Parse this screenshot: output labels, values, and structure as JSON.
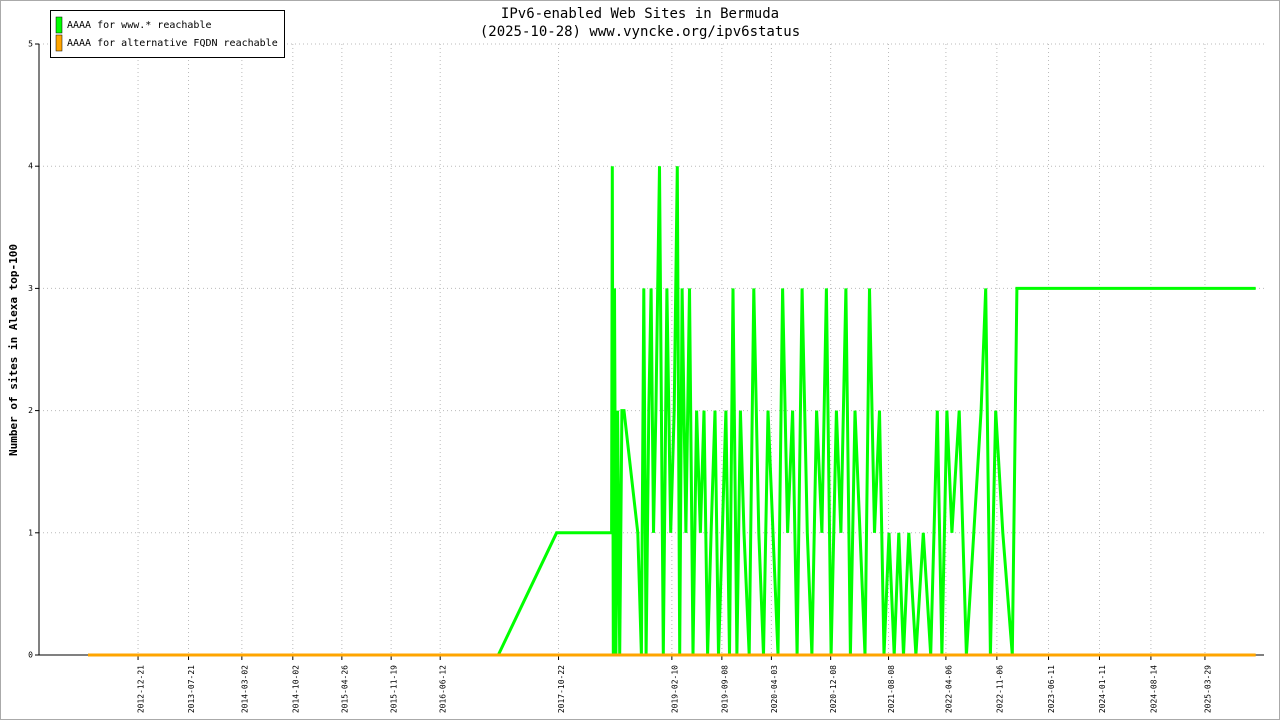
{
  "chart_data": {
    "type": "line",
    "title": "IPv6-enabled Web Sites in Bermuda",
    "subtitle": "(2025-10-28) www.vyncke.org/ipv6status",
    "y_label": "Number of sites in Alexa top-100",
    "xlim": [
      "2011-11-01",
      "2025-12-02"
    ],
    "xticks": [
      "2012-12-21",
      "2013-07-21",
      "2014-03-02",
      "2014-10-02",
      "2015-04-26",
      "2015-11-19",
      "2016-06-12",
      "2017-10-22",
      "2019-02-10",
      "2019-09-08",
      "2020-04-03",
      "2020-12-08",
      "2021-08-08",
      "2022-04-06",
      "2022-11-06",
      "2023-06-11",
      "2024-01-11",
      "2024-08-14",
      "2025-03-29"
    ],
    "ylim": [
      0,
      5
    ],
    "yticks": [
      0,
      1,
      2,
      3,
      4,
      5
    ],
    "grid": true,
    "legend": "top-left",
    "series": [
      {
        "name": "AAAA for www.* reachable",
        "color": "#00ff00",
        "x": [
          "2012-05-25",
          "2017-02-11",
          "2017-10-14",
          "2018-06-02",
          "2018-06-05",
          "2018-06-09",
          "2018-06-14",
          "2018-06-20",
          "2018-06-27",
          "2018-07-06",
          "2018-07-15",
          "2018-07-24",
          "2018-09-20",
          "2018-10-05",
          "2018-10-15",
          "2018-10-25",
          "2018-11-05",
          "2018-11-15",
          "2018-11-25",
          "2018-12-05",
          "2018-12-20",
          "2019-01-05",
          "2019-01-20",
          "2019-02-05",
          "2019-02-20",
          "2019-03-05",
          "2019-03-15",
          "2019-03-25",
          "2019-04-10",
          "2019-04-25",
          "2019-05-10",
          "2019-05-25",
          "2019-06-10",
          "2019-06-25",
          "2019-07-10",
          "2019-07-25",
          "2019-08-10",
          "2019-08-25",
          "2019-09-10",
          "2019-09-25",
          "2019-10-10",
          "2019-10-25",
          "2019-11-10",
          "2019-11-25",
          "2019-12-10",
          "2020-01-01",
          "2020-01-20",
          "2020-02-10",
          "2020-03-01",
          "2020-03-20",
          "2020-04-10",
          "2020-05-01",
          "2020-05-20",
          "2020-06-10",
          "2020-07-01",
          "2020-07-20",
          "2020-08-10",
          "2020-09-01",
          "2020-09-20",
          "2020-10-10",
          "2020-11-01",
          "2020-11-20",
          "2020-12-10",
          "2021-01-01",
          "2021-01-20",
          "2021-02-10",
          "2021-03-01",
          "2021-03-20",
          "2021-04-10",
          "2021-05-01",
          "2021-05-20",
          "2021-06-10",
          "2021-07-01",
          "2021-07-20",
          "2021-08-10",
          "2021-09-01",
          "2021-09-20",
          "2021-10-10",
          "2021-11-01",
          "2021-12-01",
          "2022-01-01",
          "2022-02-01",
          "2022-03-01",
          "2022-03-20",
          "2022-04-10",
          "2022-05-01",
          "2022-06-01",
          "2022-07-01",
          "2022-08-01",
          "2022-09-01",
          "2022-09-20",
          "2022-10-10",
          "2022-11-01",
          "2022-12-01",
          "2023-01-10",
          "2023-01-29",
          "2025-10-28"
        ],
        "values": [
          0,
          0,
          1,
          1,
          4,
          0,
          3,
          0,
          2,
          0,
          2,
          2,
          1,
          0,
          3,
          0,
          2,
          3,
          1,
          2,
          4,
          0,
          3,
          1,
          2,
          4,
          0,
          3,
          1,
          3,
          0,
          2,
          1,
          2,
          0,
          1,
          2,
          0,
          1,
          2,
          0,
          3,
          0,
          2,
          1,
          0,
          3,
          1,
          0,
          2,
          1,
          0,
          3,
          1,
          2,
          0,
          3,
          1,
          0,
          2,
          1,
          3,
          0,
          2,
          1,
          3,
          0,
          2,
          1,
          0,
          3,
          1,
          2,
          0,
          1,
          0,
          1,
          0,
          1,
          0,
          1,
          0,
          2,
          0,
          2,
          1,
          2,
          0,
          1,
          2,
          3,
          0,
          2,
          1,
          0,
          3,
          3
        ]
      },
      {
        "name": "AAAA for alternative FQDN reachable",
        "color": "#ffa500",
        "x": [
          "2012-05-25",
          "2025-10-28"
        ],
        "values": [
          0,
          0
        ]
      }
    ]
  }
}
